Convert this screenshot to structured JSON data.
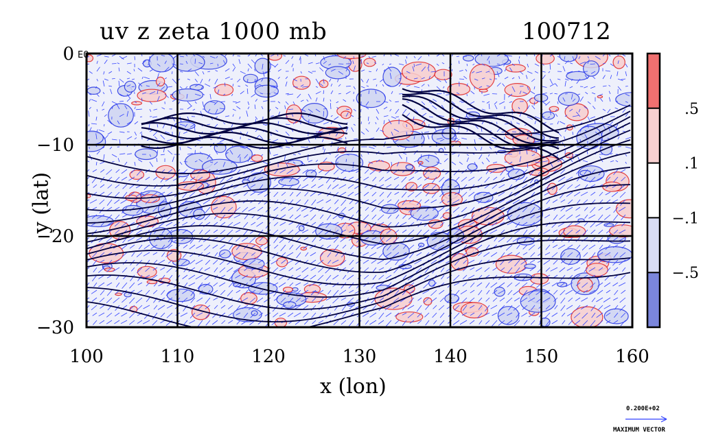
{
  "chart_data": {
    "type": "heatmap",
    "title": "uv z zeta 1000 mb",
    "date_label": "100712",
    "xlabel": "x (lon)",
    "ylabel": "y (lat)",
    "xlim": [
      100,
      160
    ],
    "ylim": [
      -30,
      0
    ],
    "x_ticks": [
      "100",
      "110",
      "120",
      "130",
      "140",
      "150",
      "160"
    ],
    "y_ticks": [
      "0",
      "−10",
      "−20",
      "−30"
    ],
    "grid": true,
    "colorbar": {
      "labels": [
        ".5",
        ".1",
        "−.1",
        "−.5"
      ],
      "colors": [
        "#f07070",
        "#f8d0d0",
        "#ffffff",
        "#d8dcf4",
        "#7b86dc"
      ]
    },
    "overlay_label": "E0",
    "max_vector": {
      "value": "0.200E+02",
      "label": "MAXIMUM VECTOR"
    },
    "colors": {
      "positive_contour": "#e02020",
      "negative_contour": "#2030e0",
      "height_contour": "#000040",
      "vector": "#3040ff"
    }
  }
}
